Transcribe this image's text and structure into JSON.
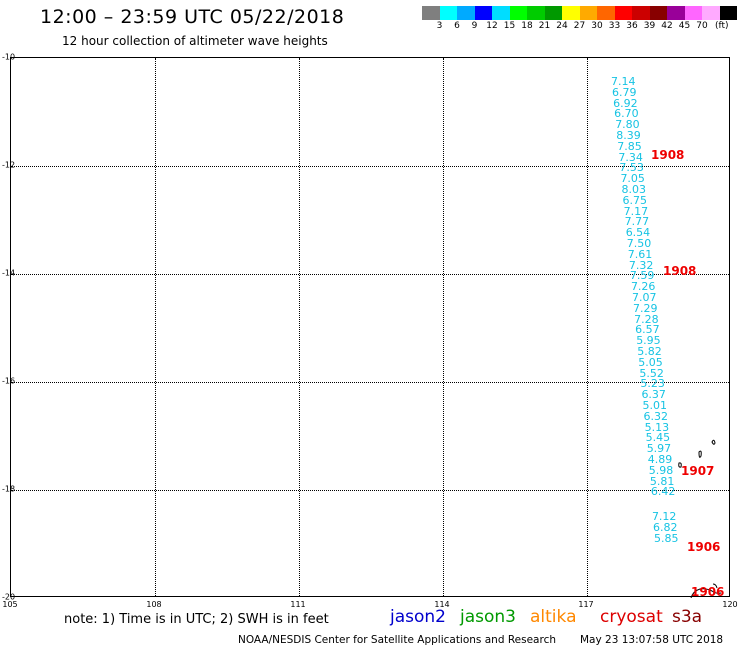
{
  "header": {
    "title": "12:00 – 23:59 UTC 05/22/2018",
    "subtitle": "12 hour collection of altimeter wave heights"
  },
  "color_scale": {
    "colors": [
      "#7f7f7f",
      "#00ffff",
      "#00aaff",
      "#0000ff",
      "#00ddff",
      "#00ff00",
      "#00cc00",
      "#009900",
      "#ffff00",
      "#ffaa00",
      "#ff6600",
      "#ff0000",
      "#cc0000",
      "#880000",
      "#990099",
      "#ff66ff",
      "#ffaaff",
      "#000000"
    ],
    "labels": [
      "3",
      "6",
      "9",
      "12",
      "15",
      "18",
      "21",
      "24",
      "27",
      "30",
      "33",
      "36",
      "39",
      "42",
      "45",
      "70",
      "(ft)"
    ]
  },
  "map": {
    "lat_labels": [
      "10",
      "12",
      "14",
      "16",
      "18",
      "20"
    ],
    "lon_labels": [
      "105",
      "108",
      "111",
      "114",
      "117",
      "120"
    ],
    "swh_values": [
      "7.14",
      "6.79",
      "6.92",
      "6.70",
      "7.80",
      "8.39",
      "7.85",
      "7.34",
      "7.53",
      "7.05",
      "8.03",
      "6.75",
      "7.17",
      "7.77",
      "6.54",
      "7.50",
      "7.61",
      "7.32",
      "7.59",
      "7.26",
      "7.07",
      "7.29",
      "7.28",
      "6.57",
      "5.95",
      "5.82",
      "5.05",
      "5.52",
      "5.23",
      "6.37",
      "5.01",
      "6.32",
      "5.13",
      "5.45",
      "5.97",
      "4.89",
      "5.98",
      "5.81",
      "6.42",
      "7.12",
      "6.82",
      "5.85"
    ],
    "track_labels": [
      "1908",
      "1908",
      "1907",
      "1906",
      "1906"
    ],
    "swh_color": "#17c3e3",
    "track_label_color": "#ee0000"
  },
  "footer": {
    "note": "note: 1) Time is in UTC; 2) SWH is in feet",
    "satellites": [
      {
        "name": "jason2",
        "color": "#0000cc"
      },
      {
        "name": "jason3",
        "color": "#009900"
      },
      {
        "name": "altika",
        "color": "#ff8800"
      },
      {
        "name": "cryosat",
        "color": "#dd0000"
      },
      {
        "name": "s3a",
        "color": "#880000"
      }
    ],
    "credit": "NOAA/NESDIS Center for Satellite Applications and Research",
    "timestamp": "May 23 13:07:58 UTC 2018"
  }
}
